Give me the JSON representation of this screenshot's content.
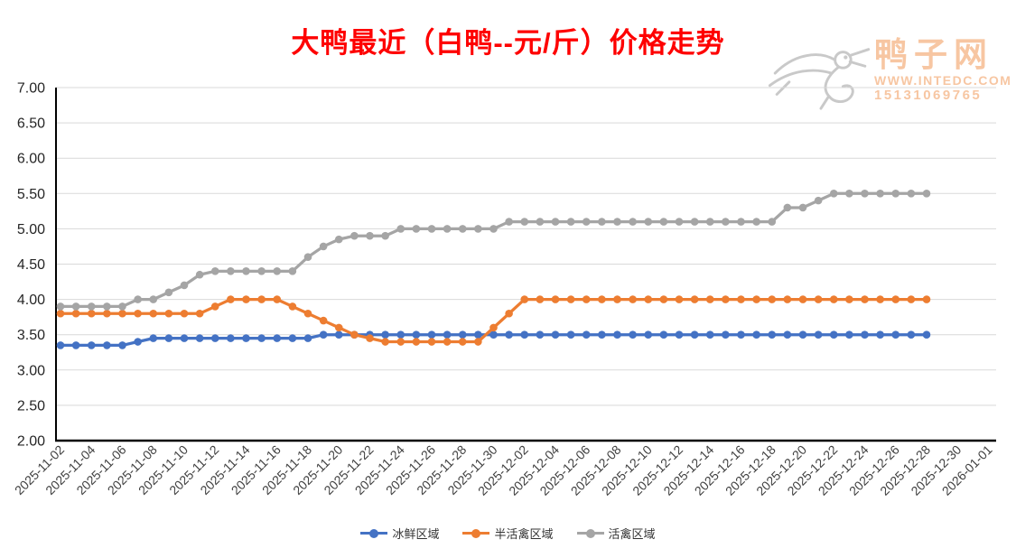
{
  "title": "大鸭最近（白鸭--元/斤）价格走势",
  "watermark": {
    "site_name": "鸭子网",
    "url": "WWW.INTEDC.COM",
    "phone": "15131069765"
  },
  "colors": {
    "title": "#FE0000",
    "axis": "#000000",
    "gridline": "#D9D9D9",
    "y_tick_label": "#262626",
    "x_tick_label": "#404040",
    "legend_label": "#333333",
    "watermark_text": "#F7C6A2",
    "watermark_logo": "#C9C9C9"
  },
  "chart_data": {
    "type": "line",
    "title": "大鸭最近（白鸭--元/斤）价格走势",
    "xlabel": "",
    "ylabel": "",
    "ylim": [
      2.0,
      7.0
    ],
    "grid": true,
    "legend_position": "bottom",
    "marker": "circle",
    "y_tick_labels": [
      "2.00",
      "2.50",
      "3.00",
      "3.50",
      "4.00",
      "4.50",
      "5.00",
      "5.50",
      "6.00",
      "6.50",
      "7.00"
    ],
    "x_tick_labels": [
      "2025-11-02",
      "2025-11-04",
      "2025-11-06",
      "2025-11-08",
      "2025-11-10",
      "2025-11-12",
      "2025-11-14",
      "2025-11-16",
      "2025-11-18",
      "2025-11-20",
      "2025-11-22",
      "2025-11-24",
      "2025-11-26",
      "2025-11-28",
      "2025-11-30",
      "2025-12-02",
      "2025-12-04",
      "2025-12-06",
      "2025-12-08",
      "2025-12-10",
      "2025-12-12",
      "2025-12-14",
      "2025-12-16",
      "2025-12-18",
      "2025-12-20",
      "2025-12-22",
      "2025-12-24",
      "2025-12-26",
      "2025-12-28",
      "2025-12-30",
      "2026-01-01"
    ],
    "dates": [
      "2025-11-02",
      "2025-11-03",
      "2025-11-04",
      "2025-11-05",
      "2025-11-06",
      "2025-11-07",
      "2025-11-08",
      "2025-11-09",
      "2025-11-10",
      "2025-11-11",
      "2025-11-12",
      "2025-11-13",
      "2025-11-14",
      "2025-11-15",
      "2025-11-16",
      "2025-11-17",
      "2025-11-18",
      "2025-11-19",
      "2025-11-20",
      "2025-11-21",
      "2025-11-22",
      "2025-11-23",
      "2025-11-24",
      "2025-11-25",
      "2025-11-26",
      "2025-11-27",
      "2025-11-28",
      "2025-11-29",
      "2025-11-30",
      "2025-12-01",
      "2025-12-02",
      "2025-12-03",
      "2025-12-04",
      "2025-12-05",
      "2025-12-06",
      "2025-12-07",
      "2025-12-08",
      "2025-12-09",
      "2025-12-10",
      "2025-12-11",
      "2025-12-12",
      "2025-12-13",
      "2025-12-14",
      "2025-12-15",
      "2025-12-16",
      "2025-12-17",
      "2025-12-18",
      "2025-12-19",
      "2025-12-20",
      "2025-12-21",
      "2025-12-22",
      "2025-12-23",
      "2025-12-24",
      "2025-12-25",
      "2025-12-26",
      "2025-12-27",
      "2025-12-28"
    ],
    "series": [
      {
        "name": "冰鲜区域",
        "key": "chilled-area",
        "color": "#4472C4",
        "values": [
          3.35,
          3.35,
          3.35,
          3.35,
          3.35,
          3.4,
          3.45,
          3.45,
          3.45,
          3.45,
          3.45,
          3.45,
          3.45,
          3.45,
          3.45,
          3.45,
          3.45,
          3.5,
          3.5,
          3.5,
          3.5,
          3.5,
          3.5,
          3.5,
          3.5,
          3.5,
          3.5,
          3.5,
          3.5,
          3.5,
          3.5,
          3.5,
          3.5,
          3.5,
          3.5,
          3.5,
          3.5,
          3.5,
          3.5,
          3.5,
          3.5,
          3.5,
          3.5,
          3.5,
          3.5,
          3.5,
          3.5,
          3.5,
          3.5,
          3.5,
          3.5,
          3.5,
          3.5,
          3.5,
          3.5,
          3.5,
          3.5
        ]
      },
      {
        "name": "半活禽区域",
        "key": "semi-live-poultry-area",
        "color": "#ED7D31",
        "values": [
          3.8,
          3.8,
          3.8,
          3.8,
          3.8,
          3.8,
          3.8,
          3.8,
          3.8,
          3.8,
          3.9,
          4.0,
          4.0,
          4.0,
          4.0,
          3.9,
          3.8,
          3.7,
          3.6,
          3.5,
          3.45,
          3.4,
          3.4,
          3.4,
          3.4,
          3.4,
          3.4,
          3.4,
          3.6,
          3.8,
          4.0,
          4.0,
          4.0,
          4.0,
          4.0,
          4.0,
          4.0,
          4.0,
          4.0,
          4.0,
          4.0,
          4.0,
          4.0,
          4.0,
          4.0,
          4.0,
          4.0,
          4.0,
          4.0,
          4.0,
          4.0,
          4.0,
          4.0,
          4.0,
          4.0,
          4.0,
          4.0
        ]
      },
      {
        "name": "活禽区域",
        "key": "live-poultry-area",
        "color": "#A5A5A5",
        "values": [
          3.9,
          3.9,
          3.9,
          3.9,
          3.9,
          4.0,
          4.0,
          4.1,
          4.2,
          4.35,
          4.4,
          4.4,
          4.4,
          4.4,
          4.4,
          4.4,
          4.6,
          4.75,
          4.85,
          4.9,
          4.9,
          4.9,
          5.0,
          5.0,
          5.0,
          5.0,
          5.0,
          5.0,
          5.0,
          5.1,
          5.1,
          5.1,
          5.1,
          5.1,
          5.1,
          5.1,
          5.1,
          5.1,
          5.1,
          5.1,
          5.1,
          5.1,
          5.1,
          5.1,
          5.1,
          5.1,
          5.1,
          5.3,
          5.3,
          5.4,
          5.5,
          5.5,
          5.5,
          5.5,
          5.5,
          5.5,
          5.5
        ]
      }
    ]
  }
}
